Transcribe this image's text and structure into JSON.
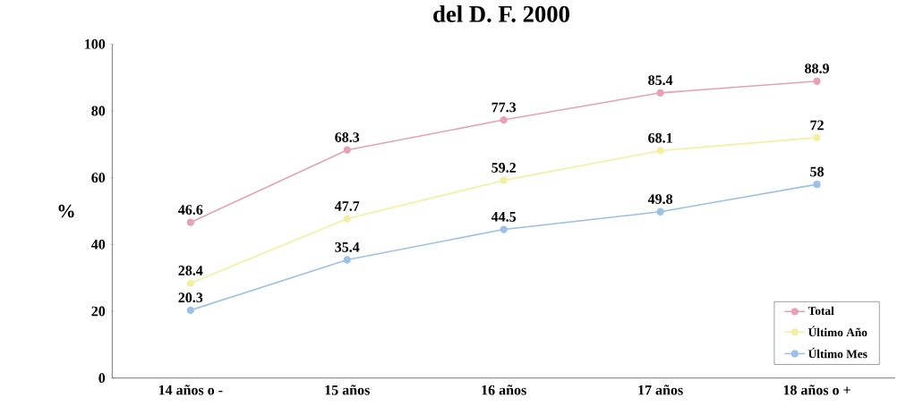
{
  "chart_data": {
    "type": "line",
    "title": "del D. F. 2000",
    "ylabel": "%",
    "categories": [
      "14 años o -",
      "15 años",
      "16 años",
      "17 años",
      "18 años o +"
    ],
    "series": [
      {
        "name": "Total",
        "color": "#e8a0b8",
        "values": [
          46.6,
          68.3,
          77.3,
          85.4,
          88.9
        ]
      },
      {
        "name": "Último Año",
        "color": "#f2f0a0",
        "values": [
          28.4,
          47.7,
          59.2,
          68.1,
          72
        ]
      },
      {
        "name": "Último Mes",
        "color": "#9cc0e6",
        "values": [
          20.3,
          35.4,
          44.5,
          49.8,
          58
        ]
      }
    ],
    "ylim": [
      0,
      100
    ],
    "yticks": [
      0,
      20,
      40,
      60,
      80,
      100
    ],
    "marker": "circle",
    "line_style": "solid",
    "legend": "bottom right",
    "data_labels": true,
    "grid": false
  }
}
